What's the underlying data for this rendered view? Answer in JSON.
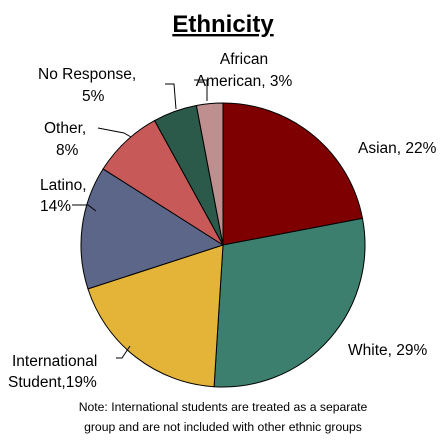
{
  "chart_data": {
    "type": "pie",
    "title": "Ethnicity",
    "start_angle_deg": 0,
    "direction": "clockwise",
    "slices": [
      {
        "label": "Asian",
        "value": 22,
        "display": "Asian, 22%",
        "color": "#7f0000"
      },
      {
        "label": "White",
        "value": 29,
        "display": "White, 29%",
        "color": "#3d7f6e"
      },
      {
        "label": "International Student",
        "value": 19,
        "display_line1": "International",
        "display_line2": "Student,19%",
        "color": "#e3b437"
      },
      {
        "label": "Latino",
        "value": 14,
        "display_line1": "Latino,",
        "display_line2": "14%",
        "color": "#5c6688"
      },
      {
        "label": "Other",
        "value": 8,
        "display_line1": "Other,",
        "display_line2": "8%",
        "color": "#c85959"
      },
      {
        "label": "No Response",
        "value": 5,
        "display_line1": "No Response,",
        "display_line2": "5%",
        "color": "#2c5a4a"
      },
      {
        "label": "African American",
        "value": 3,
        "display_line1": "African",
        "display_line2": "American, 3%",
        "color": "#bf8f8f"
      }
    ],
    "legend": "none",
    "note_lines": [
      "Note: International students are treated as a separate",
      "group and are not included with other ethnic groups"
    ]
  }
}
